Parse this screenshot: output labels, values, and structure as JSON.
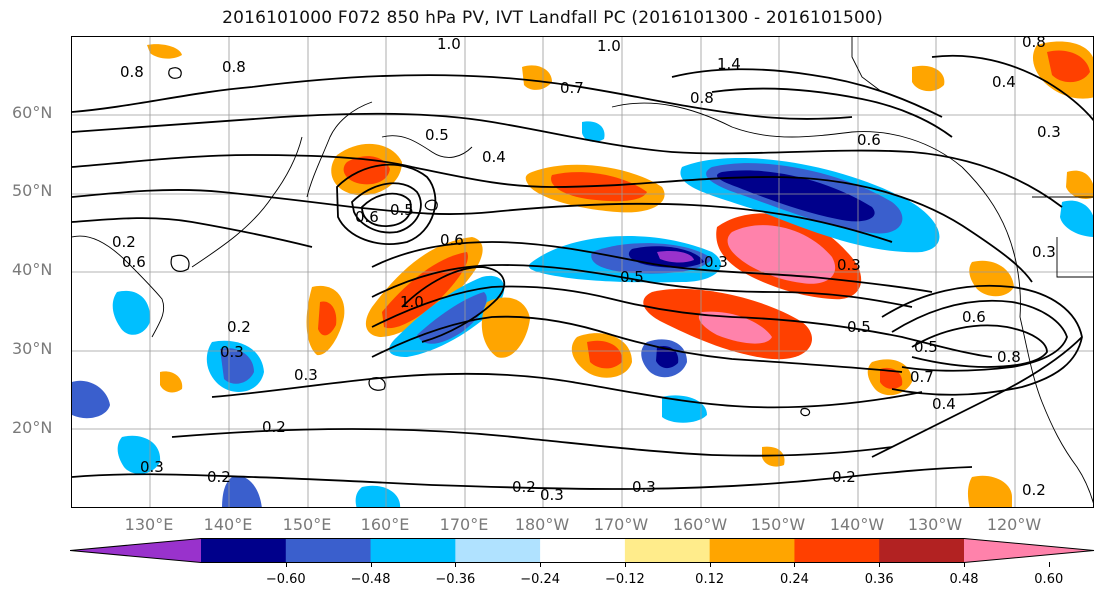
{
  "title": "2016101000 F072 850 hPa PV, IVT Landfall PC (2016101300 - 2016101500)",
  "map": {
    "lat_labels": [
      "60°N",
      "50°N",
      "40°N",
      "30°N",
      "20°N"
    ],
    "lon_labels": [
      "130°E",
      "140°E",
      "150°E",
      "160°E",
      "170°E",
      "180°W",
      "170°W",
      "160°W",
      "150°W",
      "140°W",
      "130°W",
      "120°W"
    ],
    "contour_labels": [
      "1.0",
      "1.0",
      "0.8",
      "0.8",
      "1.4",
      "0.7",
      "0.8",
      "0.8",
      "0.4",
      "0.6",
      "0.5",
      "0.4",
      "0.6",
      "0.5",
      "0.6",
      "0.3",
      "0.3",
      "0.5",
      "0.3",
      "0.2",
      "0.3",
      "0.3",
      "0.2",
      "0.5",
      "0.5",
      "0.6",
      "0.7",
      "0.8",
      "0.4",
      "0.2",
      "0.3",
      "0.3",
      "0.2",
      "0.2",
      "0.3",
      "0.2",
      "0.6",
      "0.3",
      "1.0",
      "0.2"
    ]
  },
  "colorbar": {
    "ticks": [
      "−0.60",
      "−0.48",
      "−0.36",
      "−0.24",
      "−0.12",
      "0.12",
      "0.24",
      "0.36",
      "0.48",
      "0.60"
    ],
    "colors": [
      "#9932cc",
      "#00008b",
      "#3a5fcd",
      "#00bfff",
      "#b0e2ff",
      "#ffffff",
      "#ffec8b",
      "#ffa500",
      "#ff4000",
      "#b22222",
      "#ff82ab"
    ]
  }
}
